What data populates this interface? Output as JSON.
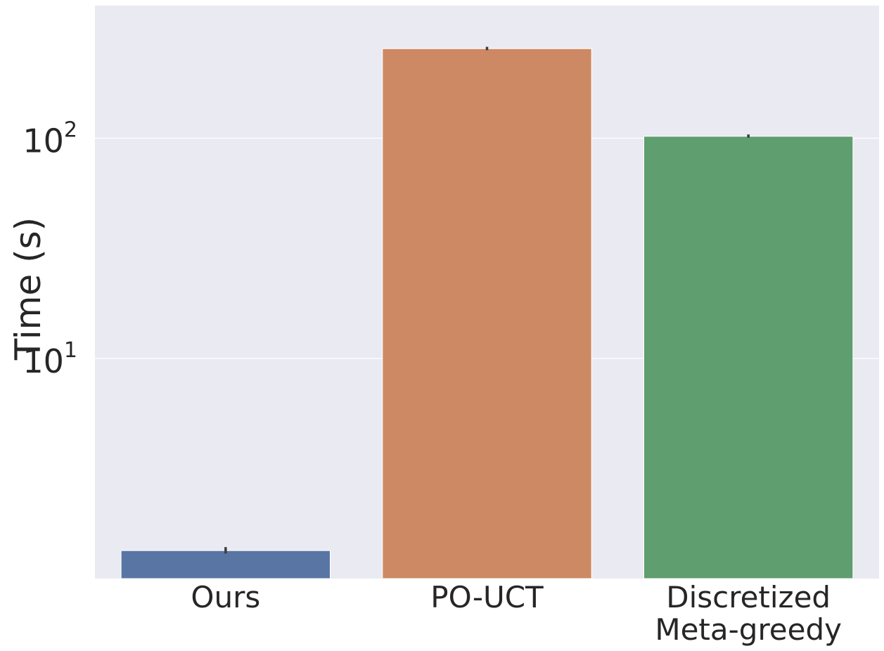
{
  "chart_data": {
    "type": "bar",
    "title": "",
    "xlabel": "",
    "ylabel": "Time (s)",
    "yscale": "log",
    "ylim": [
      1.0,
      400
    ],
    "grid": true,
    "legend": "none",
    "categories": [
      [
        "Ours"
      ],
      [
        "PO-UCT"
      ],
      [
        "Discretized",
        "Meta-greedy"
      ]
    ],
    "values": [
      1.34,
      255,
      102
    ],
    "error_low": [
      1.3,
      251,
      100.5
    ],
    "error_high": [
      1.39,
      260,
      104
    ],
    "colors": [
      "#5975a4",
      "#cc8963",
      "#5f9e6e"
    ],
    "y_ticks": [
      {
        "value": 10,
        "base": "10",
        "exponent": "1"
      },
      {
        "value": 100,
        "base": "10",
        "exponent": "2"
      }
    ],
    "background_color": "#eaeaf2",
    "grid_color": "#ffffff",
    "errorbar_color": "#3d3d3d"
  }
}
